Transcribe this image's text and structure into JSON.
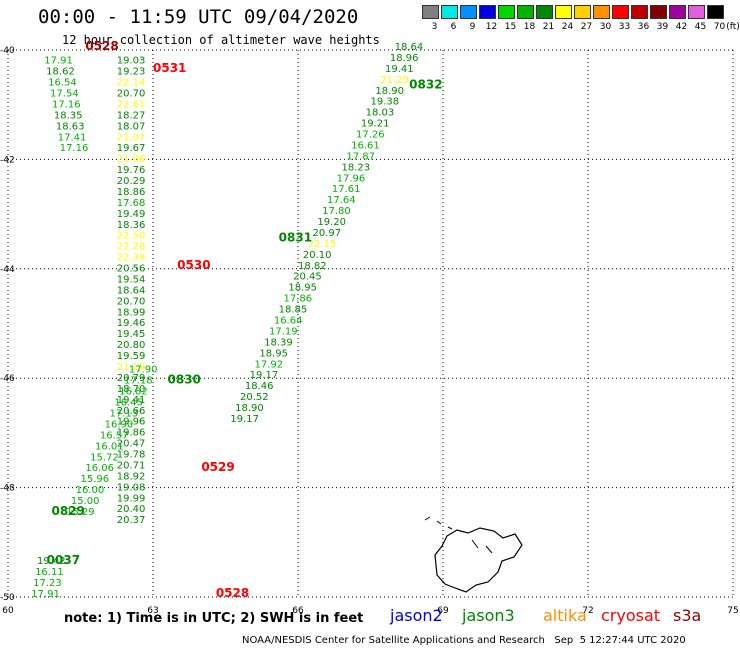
{
  "header": {
    "title": "00:00 - 11:59 UTC 09/04/2020",
    "subtitle": "12 hour collection of altimeter wave heights"
  },
  "legend": {
    "unit": "(ft)",
    "bins": [
      {
        "label": "3",
        "color": "#808080"
      },
      {
        "label": "6",
        "color": "#00e8e8"
      },
      {
        "label": "9",
        "color": "#0090ff"
      },
      {
        "label": "12",
        "color": "#0000e0"
      },
      {
        "label": "15",
        "color": "#00d800"
      },
      {
        "label": "18",
        "color": "#00b400"
      },
      {
        "label": "21",
        "color": "#008800"
      },
      {
        "label": "24",
        "color": "#ffff00"
      },
      {
        "label": "27",
        "color": "#ffd000"
      },
      {
        "label": "30",
        "color": "#ff9000"
      },
      {
        "label": "33",
        "color": "#ff0000"
      },
      {
        "label": "36",
        "color": "#c00000"
      },
      {
        "label": "39",
        "color": "#800000"
      },
      {
        "label": "42",
        "color": "#a000a0"
      },
      {
        "label": "45",
        "color": "#e060e0"
      },
      {
        "label": "70",
        "color": "#000000"
      }
    ]
  },
  "axes": {
    "x_ticks": [
      "60",
      "63",
      "66",
      "69",
      "72",
      "75"
    ],
    "y_ticks": [
      "-40",
      "-42",
      "-44",
      "-46",
      "-48",
      "-50"
    ]
  },
  "tracks": [
    {
      "lon0": 60.75,
      "lat0": -40.25,
      "dlon": 0.04,
      "dlat": 0.2,
      "first_index": 0,
      "values": [
        "17.91",
        "18.62",
        "16.54",
        "17.54",
        "17.16",
        "18.35",
        "18.63",
        "17.41",
        "17.16"
      ]
    },
    {
      "lon0": 62.25,
      "lat0": -40.25,
      "dlon": 0.0,
      "dlat": 0.2,
      "first_index": 0,
      "values": [
        "19.03",
        "19.23",
        "22.14",
        "20.70",
        "22.61",
        "18.27",
        "18.07",
        "21.07",
        "19.67",
        "21.96",
        "19.76",
        "20.29",
        "18.86",
        "17.68",
        "19.49",
        "18.36",
        "22.50",
        "22.28",
        "22.39",
        "20.56",
        "19.54",
        "18.64",
        "20.70",
        "18.99",
        "19.46",
        "19.45",
        "20.80",
        "19.59",
        "21.19",
        "20.79",
        "18.70",
        "19.41",
        "20.66",
        "19.96",
        "19.86",
        "20.47",
        "19.78",
        "20.71",
        "18.92",
        "19.08",
        "19.99",
        "20.40",
        "20.37"
      ]
    },
    {
      "lon0": 68.0,
      "lat0": -40.0,
      "dlon": -0.1,
      "dlat": 0.2,
      "first_index": 0,
      "values": [
        "18.64",
        "18.96",
        "19.41",
        "21.29",
        "18.90",
        "19.38",
        "18.03",
        "19.21",
        "17.26",
        "16.61",
        "17.87",
        "18.23",
        "17.96",
        "17.61",
        "17.64",
        "17.80",
        "19.20",
        "20.97",
        "22.15",
        "20.10",
        "18.82",
        "20.45",
        "18.95",
        "17.86",
        "18.85",
        "16.64",
        "17.19",
        "18.39",
        "18.95",
        "17.92",
        "19.17",
        "18.46",
        "20.52",
        "18.90",
        "19.17"
      ]
    },
    {
      "lon0": 62.5,
      "lat0": -45.9,
      "dlon": -0.1,
      "dlat": 0.2,
      "first_index": 0,
      "values": [
        "17.90",
        "17.18",
        "16.82",
        "16.45",
        "17.13",
        "16.90",
        "16.57",
        "16.01",
        "15.72",
        "16.06",
        "15.96",
        "16.00",
        "15.00",
        "15.29"
      ]
    },
    {
      "lon0": 60.6,
      "lat0": -49.4,
      "dlon": -0.04,
      "dlat": 0.2,
      "first_index": 0,
      "values": [
        "19.42",
        "16.11",
        "17.23",
        "17.91"
      ]
    }
  ],
  "pass_labels": [
    {
      "text": "0528",
      "lon": 61.6,
      "lat": -40.0,
      "color": "#a00000"
    },
    {
      "text": "0531",
      "lon": 63.0,
      "lat": -40.4,
      "color": "#ff0000"
    },
    {
      "text": "0832",
      "lon": 68.3,
      "lat": -40.7,
      "color": "#008800"
    },
    {
      "text": "0831",
      "lon": 65.6,
      "lat": -43.5,
      "color": "#008800"
    },
    {
      "text": "0530",
      "lon": 63.5,
      "lat": -44.0,
      "color": "#ff0000"
    },
    {
      "text": "0830",
      "lon": 63.3,
      "lat": -46.1,
      "color": "#008800"
    },
    {
      "text": "0529",
      "lon": 64.0,
      "lat": -47.7,
      "color": "#ff0000"
    },
    {
      "text": "0829",
      "lon": 60.9,
      "lat": -48.5,
      "color": "#008800"
    },
    {
      "text": "0037",
      "lon": 60.8,
      "lat": -49.4,
      "color": "#008800"
    },
    {
      "text": "0528",
      "lon": 64.3,
      "lat": -50.0,
      "color": "#ff0000"
    }
  ],
  "note": "note: 1) Time is in UTC; 2) SWH is in feet",
  "satellites": [
    {
      "name": "jason2",
      "color": "#0000e0"
    },
    {
      "name": "jason3",
      "color": "#008800"
    },
    {
      "name": "altika",
      "color": "#ff9000"
    },
    {
      "name": "cryosat",
      "color": "#ff0000"
    },
    {
      "name": "s3a",
      "color": "#a00000"
    }
  ],
  "footer": "NOAA/NESDIS Center for Satellite Applications and Research   Sep  5 12:27:44 UTC 2020"
}
